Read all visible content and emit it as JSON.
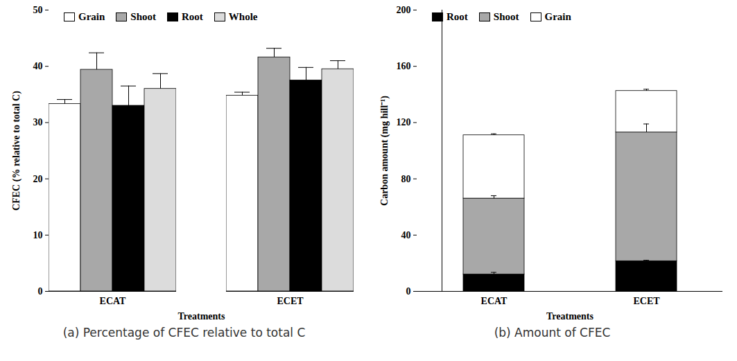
{
  "chart_data": [
    {
      "type": "bar",
      "title": "(a) Percentage of CFEC relative to total C",
      "xlabel": "Treatments",
      "ylabel": "CFEC (% relative to total C)",
      "categories": [
        "ECAT",
        "ECET"
      ],
      "series": [
        {
          "name": "Grain",
          "color": "#ffffff",
          "values": [
            33.3,
            34.8
          ],
          "errors": [
            0.8,
            0.6
          ]
        },
        {
          "name": "Shoot",
          "color": "#a8a8a8",
          "values": [
            39.4,
            41.6
          ],
          "errors": [
            3.0,
            1.6
          ]
        },
        {
          "name": "Root",
          "color": "#000000",
          "values": [
            33.0,
            37.5
          ],
          "errors": [
            3.5,
            2.3
          ]
        },
        {
          "name": "Whole",
          "color": "#dcdcdc",
          "values": [
            36.0,
            39.5
          ],
          "errors": [
            2.7,
            1.5
          ]
        }
      ],
      "ylim": [
        0,
        50
      ],
      "yticks": [
        0,
        10,
        20,
        30,
        40,
        50
      ],
      "grid": false,
      "legend": "top"
    },
    {
      "type": "bar",
      "title": "(b) Amount of CFEC",
      "xlabel": "Treatments",
      "ylabel": "Carbon amount (mg hill⁻¹)",
      "categories": [
        "ECAT",
        "ECET"
      ],
      "stacked": true,
      "series": [
        {
          "name": "Root",
          "color": "#000000",
          "values": [
            12.0,
            21.5
          ],
          "errors": [
            1.5,
            0.6
          ]
        },
        {
          "name": "Shoot",
          "color": "#a8a8a8",
          "values": [
            54.0,
            91.5
          ],
          "errors": [
            2.0,
            6.0
          ]
        },
        {
          "name": "Grain",
          "color": "#ffffff",
          "values": [
            45.0,
            29.5
          ],
          "errors": [
            1.0,
            1.2
          ]
        }
      ],
      "ylim": [
        0,
        200
      ],
      "yticks": [
        0,
        40,
        80,
        120,
        160,
        200
      ],
      "grid": false,
      "legend": "top"
    }
  ]
}
